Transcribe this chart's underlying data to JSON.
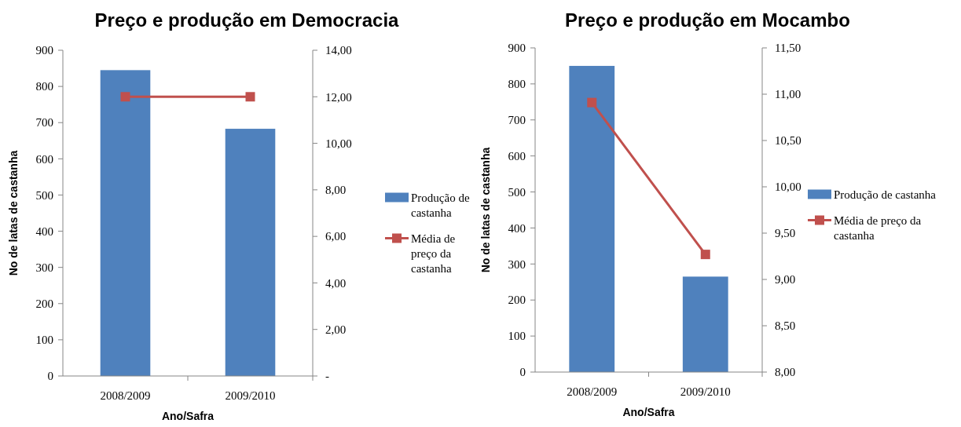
{
  "chart_data": [
    {
      "type": "bar",
      "title": "Preço  e produção  em Democracia",
      "xlabel": "Ano/Safra",
      "ylabel": "No de latas de castanha",
      "categories": [
        "2008/2009",
        "2009/2010"
      ],
      "ylim": [
        0,
        900
      ],
      "yticks": [
        0,
        100,
        200,
        300,
        400,
        500,
        600,
        700,
        800,
        900
      ],
      "y2lim": [
        0,
        14
      ],
      "y2ticks": [
        {
          "value": 0,
          "label": "-"
        },
        {
          "value": 2,
          "label": "2,00"
        },
        {
          "value": 4,
          "label": "4,00"
        },
        {
          "value": 6,
          "label": "6,00"
        },
        {
          "value": 8,
          "label": "8,00"
        },
        {
          "value": 10,
          "label": "10,00"
        },
        {
          "value": 12,
          "label": "12,00"
        },
        {
          "value": 14,
          "label": "14,00"
        }
      ],
      "legend": "right",
      "grid": false,
      "series": [
        {
          "name": "Produção de castanha",
          "color": "#4f81bd",
          "values": [
            845,
            683
          ]
        },
        {
          "name": "Média de preço da castanha",
          "type": "line",
          "axis": "y2",
          "color": "#c0504d",
          "marker": "square",
          "values": [
            12,
            12
          ]
        }
      ]
    },
    {
      "type": "bar",
      "title": "Preço  e produção  em Mocambo",
      "xlabel": "Ano/Safra",
      "ylabel": "No de latas de castanha",
      "categories": [
        "2008/2009",
        "2009/2010"
      ],
      "ylim": [
        0,
        900
      ],
      "yticks": [
        0,
        100,
        200,
        300,
        400,
        500,
        600,
        700,
        800,
        900
      ],
      "y2lim": [
        8,
        11.5
      ],
      "y2ticks": [
        {
          "value": 8,
          "label": "8,00"
        },
        {
          "value": 8.5,
          "label": "8,50"
        },
        {
          "value": 9,
          "label": "9,00"
        },
        {
          "value": 9.5,
          "label": "9,50"
        },
        {
          "value": 10,
          "label": "10,00"
        },
        {
          "value": 10.5,
          "label": "10,50"
        },
        {
          "value": 11,
          "label": "11,00"
        },
        {
          "value": 11.5,
          "label": "11,50"
        }
      ],
      "legend": "right",
      "grid": false,
      "series": [
        {
          "name": "Produção de castanha",
          "color": "#4f81bd",
          "values": [
            850,
            265
          ]
        },
        {
          "name": "Média de preço da castanha",
          "type": "line",
          "axis": "y2",
          "color": "#c0504d",
          "marker": "square",
          "values": [
            10.91,
            9.27
          ]
        }
      ]
    }
  ]
}
